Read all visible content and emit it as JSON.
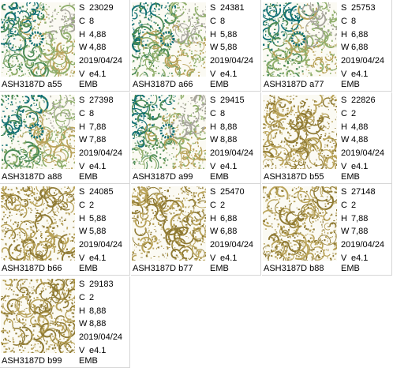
{
  "labels": {
    "stitches": "S",
    "colors": "C",
    "height": "H",
    "width": "W",
    "version": "V"
  },
  "palette": {
    "gold": "#b9a35a",
    "gold_dark": "#8f7a34",
    "teal": "#0f6f73",
    "green": "#4a8a55",
    "sage": "#8fae6b",
    "gray": "#a7a59c",
    "cell_border": "#d6d6d6"
  },
  "designs": [
    {
      "name": "ASH3187D  a55",
      "stitches": "23029",
      "colors": "8",
      "height": "4,88",
      "width": "4,88",
      "date": "2019/04/24",
      "version": "e4.1",
      "format": "EMB",
      "style": "multi"
    },
    {
      "name": "ASH3187D  a66",
      "stitches": "24381",
      "colors": "8",
      "height": "5,88",
      "width": "5,88",
      "date": "2019/04/24",
      "version": "e4.1",
      "format": "EMB",
      "style": "multi"
    },
    {
      "name": "ASH3187D  a77",
      "stitches": "25753",
      "colors": "8",
      "height": "6,88",
      "width": "6,88",
      "date": "2019/04/24",
      "version": "e4.1",
      "format": "EMB",
      "style": "multi"
    },
    {
      "name": "ASH3187D  a88",
      "stitches": "27398",
      "colors": "8",
      "height": "7,88",
      "width": "7,88",
      "date": "2019/04/24",
      "version": "e4.1",
      "format": "EMB",
      "style": "multi"
    },
    {
      "name": "ASH3187D  a99",
      "stitches": "29415",
      "colors": "8",
      "height": "8,88",
      "width": "8,88",
      "date": "2019/04/24",
      "version": "e4.1",
      "format": "EMB",
      "style": "multi"
    },
    {
      "name": "ASH3187D  b55",
      "stitches": "22826",
      "colors": "2",
      "height": "4,88",
      "width": "4,88",
      "date": "2019/04/24",
      "version": "e4.1",
      "format": "EMB",
      "style": "gold"
    },
    {
      "name": "ASH3187D  b66",
      "stitches": "24085",
      "colors": "2",
      "height": "5,88",
      "width": "5,88",
      "date": "2019/04/24",
      "version": "e4.1",
      "format": "EMB",
      "style": "gold"
    },
    {
      "name": "ASH3187D  b77",
      "stitches": "25470",
      "colors": "2",
      "height": "6,88",
      "width": "6,88",
      "date": "2019/04/24",
      "version": "e4.1",
      "format": "EMB",
      "style": "gold"
    },
    {
      "name": "ASH3187D  b88",
      "stitches": "27148",
      "colors": "2",
      "height": "7,88",
      "width": "7,88",
      "date": "2019/04/24",
      "version": "e4.1",
      "format": "EMB",
      "style": "gold"
    },
    {
      "name": "ASH3187D  b99",
      "stitches": "29183",
      "colors": "2",
      "height": "8,88",
      "width": "8,88",
      "date": "2019/04/24",
      "version": "e4.1",
      "format": "EMB",
      "style": "gold"
    }
  ]
}
